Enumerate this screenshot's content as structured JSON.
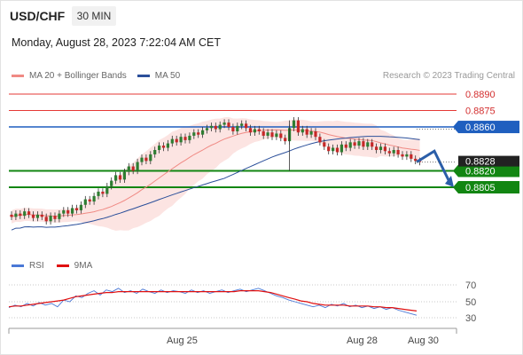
{
  "header": {
    "pair": "USD/CHF",
    "timeframe": "30 MIN",
    "datetime": "Monday, August 28, 2023 7:22:04 AM CET"
  },
  "legend": {
    "ma20": "MA 20 + Bollinger Bands",
    "ma50": "MA 50",
    "copyright": "Research © 2023 Trading Central",
    "ma20_color": "#f08a84",
    "ma50_color": "#2b4f9a"
  },
  "chart_data": [
    {
      "type": "candlestick",
      "title": "",
      "y_range": [
        0.8748,
        0.8898
      ],
      "levels": [
        {
          "value": 0.889,
          "label": "0.8890",
          "kind": "resistance",
          "color": "#e53935"
        },
        {
          "value": 0.8875,
          "label": "0.8875",
          "kind": "resistance",
          "color": "#e53935"
        },
        {
          "value": 0.886,
          "label": "0.8860",
          "kind": "pivot",
          "color": "#1f5fbf"
        },
        {
          "value": 0.882,
          "label": "0.8820",
          "kind": "support",
          "color": "#128612"
        },
        {
          "value": 0.8805,
          "label": "0.8805",
          "kind": "support",
          "color": "#128612"
        }
      ],
      "last_price": {
        "value": 0.8828,
        "label": "0.8828"
      },
      "x_ticks": [
        "Aug 25",
        "Aug 28",
        "Aug 30"
      ],
      "series": [
        {
          "name": "MA 20 + Bollinger Bands",
          "color": "#f08a84"
        },
        {
          "name": "MA 50",
          "color": "#2b4f9a"
        }
      ],
      "candles": [
        [
          0.878,
          0.8778
        ],
        [
          0.8778,
          0.8781
        ],
        [
          0.8781,
          0.8779
        ],
        [
          0.8779,
          0.8783
        ],
        [
          0.8783,
          0.878
        ],
        [
          0.878,
          0.8777
        ],
        [
          0.8777,
          0.878
        ],
        [
          0.878,
          0.8778
        ],
        [
          0.8778,
          0.8774
        ],
        [
          0.8774,
          0.8779
        ],
        [
          0.8779,
          0.8776
        ],
        [
          0.8776,
          0.8781
        ],
        [
          0.8781,
          0.8784
        ],
        [
          0.8784,
          0.8781
        ],
        [
          0.8781,
          0.8786
        ],
        [
          0.8786,
          0.8784
        ],
        [
          0.8784,
          0.8789
        ],
        [
          0.8789,
          0.8794
        ],
        [
          0.8794,
          0.8792
        ],
        [
          0.8792,
          0.8797
        ],
        [
          0.8797,
          0.8801
        ],
        [
          0.8801,
          0.8799
        ],
        [
          0.8799,
          0.8806
        ],
        [
          0.8806,
          0.8811
        ],
        [
          0.8811,
          0.8816
        ],
        [
          0.8816,
          0.8812
        ],
        [
          0.8812,
          0.8819
        ],
        [
          0.8819,
          0.8824
        ],
        [
          0.8824,
          0.882
        ],
        [
          0.882,
          0.8828
        ],
        [
          0.8828,
          0.8832
        ],
        [
          0.8832,
          0.8829
        ],
        [
          0.8829,
          0.8835
        ],
        [
          0.8835,
          0.8839
        ],
        [
          0.8839,
          0.8843
        ],
        [
          0.8843,
          0.8841
        ],
        [
          0.8841,
          0.8845
        ],
        [
          0.8845,
          0.8849
        ],
        [
          0.8849,
          0.8846
        ],
        [
          0.8846,
          0.8851
        ],
        [
          0.8851,
          0.8848
        ],
        [
          0.8848,
          0.8852
        ],
        [
          0.8852,
          0.8855
        ],
        [
          0.8855,
          0.8853
        ],
        [
          0.8853,
          0.8857
        ],
        [
          0.8857,
          0.8859
        ],
        [
          0.8859,
          0.8861
        ],
        [
          0.8861,
          0.8858
        ],
        [
          0.8858,
          0.8862
        ],
        [
          0.8862,
          0.8864
        ],
        [
          0.8864,
          0.886
        ],
        [
          0.886,
          0.8856
        ],
        [
          0.8856,
          0.8861
        ],
        [
          0.8861,
          0.8863
        ],
        [
          0.8863,
          0.8859
        ],
        [
          0.8859,
          0.8855
        ],
        [
          0.8855,
          0.8858
        ],
        [
          0.8858,
          0.8856
        ],
        [
          0.8856,
          0.8852
        ],
        [
          0.8852,
          0.8855
        ],
        [
          0.8855,
          0.8851
        ],
        [
          0.8851,
          0.8854
        ],
        [
          0.8854,
          0.885
        ],
        [
          0.885,
          0.8847
        ],
        [
          0.8847,
          0.8859
        ],
        [
          0.8859,
          0.8866
        ],
        [
          0.8866,
          0.8855
        ],
        [
          0.8855,
          0.8858
        ],
        [
          0.8858,
          0.8853
        ],
        [
          0.8853,
          0.8856
        ],
        [
          0.8856,
          0.8851
        ],
        [
          0.8851,
          0.8846
        ],
        [
          0.8846,
          0.8842
        ],
        [
          0.8842,
          0.8838
        ],
        [
          0.8838,
          0.8841
        ],
        [
          0.8841,
          0.8837
        ],
        [
          0.8837,
          0.8844
        ],
        [
          0.8844,
          0.8841
        ],
        [
          0.8841,
          0.8846
        ],
        [
          0.8846,
          0.8843
        ],
        [
          0.8843,
          0.8847
        ],
        [
          0.8847,
          0.8842
        ],
        [
          0.8842,
          0.8846
        ],
        [
          0.8846,
          0.8842
        ],
        [
          0.8842,
          0.8839
        ],
        [
          0.8839,
          0.8842
        ],
        [
          0.8842,
          0.8838
        ],
        [
          0.8838,
          0.8836
        ],
        [
          0.8836,
          0.8839
        ],
        [
          0.8839,
          0.8835
        ],
        [
          0.8835,
          0.8833
        ],
        [
          0.8833,
          0.8835
        ],
        [
          0.8835,
          0.8831
        ],
        [
          0.8831,
          0.8829
        ],
        [
          0.8829,
          0.8828
        ]
      ],
      "forecast": [
        0.8828,
        0.8838,
        0.8805
      ]
    },
    {
      "type": "line",
      "title": "",
      "series": [
        {
          "name": "RSI",
          "color": "#4a78d6"
        },
        {
          "name": "9MA",
          "color": "#e01010"
        }
      ],
      "y_ticks": [
        70,
        50,
        30
      ],
      "ylim": [
        20,
        80
      ],
      "rsi": [
        43,
        46,
        44,
        48,
        45,
        49,
        46,
        48,
        44,
        52,
        50,
        57,
        55,
        60,
        63,
        58,
        64,
        62,
        66,
        61,
        63,
        60,
        65,
        62,
        60,
        64,
        61,
        63,
        62,
        60,
        64,
        61,
        63,
        60,
        62,
        64,
        61,
        63,
        65,
        62,
        64,
        66,
        63,
        60,
        57,
        55,
        52,
        50,
        48,
        46,
        44,
        46,
        43,
        47,
        45,
        48,
        44,
        46,
        43,
        45,
        42,
        44,
        41,
        43,
        40,
        38,
        36,
        34
      ],
      "ma9": [
        44,
        45,
        45,
        46,
        47,
        48,
        49,
        50,
        51,
        52,
        54,
        56,
        57,
        58,
        59,
        60,
        61,
        61,
        62,
        62,
        62,
        62,
        62,
        62,
        62,
        62,
        62,
        62,
        62,
        62,
        62,
        62,
        62,
        62,
        62,
        62,
        62,
        62,
        63,
        63,
        63,
        63,
        62,
        61,
        59,
        57,
        55,
        53,
        51,
        50,
        48,
        47,
        46,
        46,
        46,
        46,
        45,
        45,
        45,
        45,
        44,
        44,
        43,
        43,
        42,
        41,
        40,
        39
      ]
    }
  ],
  "rsi_legend": {
    "rsi": "RSI",
    "ma9": "9MA"
  },
  "axis_labels": {
    "rsi_70": "70",
    "rsi_50": "50",
    "rsi_30": "30",
    "x_aug25": "Aug 25",
    "x_aug28": "Aug 28",
    "x_aug30": "Aug 30"
  }
}
